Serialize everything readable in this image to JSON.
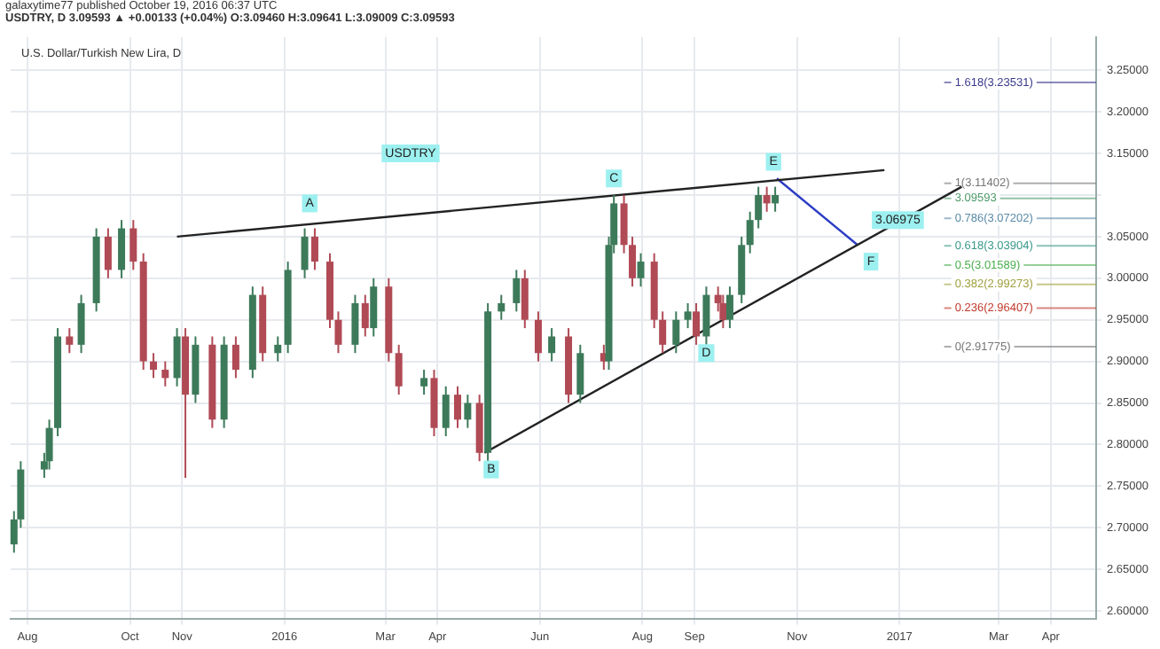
{
  "chart_data": {
    "type": "candlestick",
    "title": "U.S. Dollar/Turkish New Lira, D",
    "annotations": [
      "galaxytime77 published October 19, 2016 06:37 UTC",
      "USDTRY, D 3.09593 ▲ +0.00133 (+0.04%) O:3.09460 H:3.09641 L:3.09009 C:3.09593",
      {
        "text": "USDTRY",
        "x": "2016-03-16",
        "y": 3.15
      },
      {
        "text": "A",
        "x": "2016-01-16",
        "y": 3.09
      },
      {
        "text": "B",
        "x": "2016-05-03",
        "y": 2.77
      },
      {
        "text": "C",
        "x": "2016-07-15",
        "y": 3.12
      },
      {
        "text": "D",
        "x": "2016-09-08",
        "y": 2.91
      },
      {
        "text": "E",
        "x": "2016-10-18",
        "y": 3.14
      },
      {
        "text": "F",
        "x": "2016-12-15",
        "y": 3.02
      },
      {
        "text": "3.06975",
        "x": "2016-12-31",
        "y": 3.07
      }
    ],
    "x": [
      "2015-07-24",
      "2015-07-28",
      "2015-08-11",
      "2015-08-14",
      "2015-08-19",
      "2015-08-26",
      "2015-09-02",
      "2015-09-11",
      "2015-09-18",
      "2015-09-26",
      "2015-10-03",
      "2015-10-09",
      "2015-10-15",
      "2015-10-22",
      "2015-10-29",
      "2015-11-03",
      "2015-11-09",
      "2015-11-19",
      "2015-11-26",
      "2015-12-03",
      "2015-12-13",
      "2015-12-19",
      "2015-12-28",
      "2016-01-03",
      "2016-01-13",
      "2016-01-19",
      "2016-01-28",
      "2016-02-02",
      "2016-02-12",
      "2016-02-18",
      "2016-02-23",
      "2016-03-03",
      "2016-03-09",
      "2016-03-24",
      "2016-03-30",
      "2016-04-06",
      "2016-04-13",
      "2016-04-19",
      "2016-04-26",
      "2016-05-01",
      "2016-05-09",
      "2016-05-18",
      "2016-05-23",
      "2016-05-31",
      "2016-06-08",
      "2016-06-18",
      "2016-06-25",
      "2016-07-09",
      "2016-07-12",
      "2016-07-15",
      "2016-07-21",
      "2016-07-26",
      "2016-07-31",
      "2016-08-08",
      "2016-08-13",
      "2016-08-21",
      "2016-08-28",
      "2016-09-02",
      "2016-09-08",
      "2016-09-15",
      "2016-09-18",
      "2016-09-22",
      "2016-09-29",
      "2016-10-04",
      "2016-10-09",
      "2016-10-14",
      "2016-10-19"
    ],
    "ohlc": [
      [
        2.68,
        2.72,
        2.67,
        2.71
      ],
      [
        2.71,
        2.78,
        2.7,
        2.77
      ],
      [
        2.77,
        2.79,
        2.76,
        2.78
      ],
      [
        2.78,
        2.83,
        2.77,
        2.82
      ],
      [
        2.82,
        2.94,
        2.81,
        2.93
      ],
      [
        2.93,
        2.94,
        2.91,
        2.92
      ],
      [
        2.92,
        2.98,
        2.91,
        2.97
      ],
      [
        2.97,
        3.06,
        2.96,
        3.05
      ],
      [
        3.05,
        3.06,
        3.0,
        3.01
      ],
      [
        3.01,
        3.07,
        3.0,
        3.06
      ],
      [
        3.06,
        3.07,
        3.01,
        3.02
      ],
      [
        3.02,
        3.03,
        2.89,
        2.9
      ],
      [
        2.9,
        2.91,
        2.88,
        2.89
      ],
      [
        2.89,
        2.9,
        2.87,
        2.88
      ],
      [
        2.88,
        2.94,
        2.87,
        2.93
      ],
      [
        2.93,
        2.94,
        2.76,
        2.86
      ],
      [
        2.86,
        2.93,
        2.85,
        2.92
      ],
      [
        2.92,
        2.93,
        2.82,
        2.83
      ],
      [
        2.83,
        2.93,
        2.82,
        2.92
      ],
      [
        2.92,
        2.93,
        2.88,
        2.89
      ],
      [
        2.89,
        2.99,
        2.88,
        2.98
      ],
      [
        2.98,
        2.99,
        2.9,
        2.91
      ],
      [
        2.91,
        2.93,
        2.9,
        2.92
      ],
      [
        2.92,
        3.02,
        2.91,
        3.01
      ],
      [
        3.01,
        3.06,
        3.0,
        3.05
      ],
      [
        3.05,
        3.06,
        3.01,
        3.02
      ],
      [
        3.02,
        3.03,
        2.94,
        2.95
      ],
      [
        2.95,
        2.96,
        2.91,
        2.92
      ],
      [
        2.92,
        2.98,
        2.91,
        2.97
      ],
      [
        2.97,
        2.98,
        2.93,
        2.94
      ],
      [
        2.94,
        3.0,
        2.93,
        2.99
      ],
      [
        2.99,
        3.0,
        2.9,
        2.91
      ],
      [
        2.91,
        2.92,
        2.86,
        2.87
      ],
      [
        2.87,
        2.89,
        2.86,
        2.88
      ],
      [
        2.88,
        2.89,
        2.81,
        2.82
      ],
      [
        2.82,
        2.87,
        2.81,
        2.86
      ],
      [
        2.86,
        2.87,
        2.82,
        2.83
      ],
      [
        2.83,
        2.86,
        2.82,
        2.85
      ],
      [
        2.85,
        2.86,
        2.78,
        2.79
      ],
      [
        2.79,
        2.97,
        2.78,
        2.96
      ],
      [
        2.96,
        2.98,
        2.95,
        2.97
      ],
      [
        2.97,
        3.01,
        2.96,
        3.0
      ],
      [
        3.0,
        3.01,
        2.94,
        2.95
      ],
      [
        2.95,
        2.96,
        2.9,
        2.91
      ],
      [
        2.91,
        2.94,
        2.9,
        2.93
      ],
      [
        2.93,
        2.94,
        2.85,
        2.86
      ],
      [
        2.86,
        2.92,
        2.85,
        2.91
      ],
      [
        2.91,
        2.92,
        2.89,
        2.9
      ],
      [
        2.9,
        3.05,
        2.89,
        3.04
      ],
      [
        3.04,
        3.1,
        3.03,
        3.09
      ],
      [
        3.09,
        3.1,
        3.03,
        3.04
      ],
      [
        3.04,
        3.05,
        2.99,
        3.0
      ],
      [
        3.0,
        3.03,
        2.99,
        3.02
      ],
      [
        3.02,
        3.03,
        2.94,
        2.95
      ],
      [
        2.95,
        2.96,
        2.91,
        2.92
      ],
      [
        2.92,
        2.96,
        2.91,
        2.95
      ],
      [
        2.95,
        2.97,
        2.94,
        2.96
      ],
      [
        2.96,
        2.97,
        2.92,
        2.93
      ],
      [
        2.93,
        2.99,
        2.92,
        2.98
      ],
      [
        2.98,
        2.99,
        2.96,
        2.97
      ],
      [
        2.97,
        2.98,
        2.94,
        2.95
      ],
      [
        2.95,
        2.99,
        2.94,
        2.98
      ],
      [
        2.98,
        3.05,
        2.97,
        3.04
      ],
      [
        3.04,
        3.08,
        3.03,
        3.07
      ],
      [
        3.07,
        3.11,
        3.06,
        3.1
      ],
      [
        3.1,
        3.11,
        3.08,
        3.09
      ],
      [
        3.09,
        3.11,
        3.08,
        3.1
      ]
    ],
    "series": [
      {
        "type": "line",
        "color": "#222222",
        "x": [
          "2015-10-29",
          "2016-12-23"
        ],
        "values": [
          3.05,
          3.13
        ]
      },
      {
        "type": "line",
        "color": "#222222",
        "x": [
          "2016-04-29",
          "2017-02-07"
        ],
        "values": [
          2.79,
          3.11
        ]
      },
      {
        "type": "line",
        "color": "#2b3cc4",
        "x": [
          "2016-10-20",
          "2016-12-07"
        ],
        "values": [
          3.12,
          3.04
        ]
      }
    ],
    "ref_lines": [
      {
        "axis": "y",
        "value": 3.09593,
        "label": "3.09593",
        "color": "#4e9a6a"
      },
      {
        "axis": "y",
        "value": 3.23531,
        "label": "1.618(3.23531)",
        "color": "#3a3a8c"
      },
      {
        "axis": "y",
        "value": 3.11402,
        "label": "1(3.11402)",
        "color": "#777777"
      },
      {
        "axis": "y",
        "value": 3.07202,
        "label": "0.786(3.07202)",
        "color": "#5a8aa8"
      },
      {
        "axis": "y",
        "value": 3.03904,
        "label": "0.618(3.03904)",
        "color": "#3a9a8a"
      },
      {
        "axis": "y",
        "value": 3.01589,
        "label": "0.5(3.01589)",
        "color": "#4caf50"
      },
      {
        "axis": "y",
        "value": 2.99273,
        "label": "0.382(2.99273)",
        "color": "#a0a040"
      },
      {
        "axis": "y",
        "value": 2.96407,
        "label": "0.236(2.96407)",
        "color": "#c0392b"
      },
      {
        "axis": "y",
        "value": 2.91775,
        "label": "0(2.91775)",
        "color": "#777777"
      }
    ],
    "xlim": [
      "2015-07-22",
      "2017-04-28"
    ],
    "xticks": [
      {
        "value": "2015-08-01",
        "label": "Aug"
      },
      {
        "value": "2015-10-01",
        "label": "Oct"
      },
      {
        "value": "2015-11-01",
        "label": "Nov"
      },
      {
        "value": "2016-01-01",
        "label": "2016"
      },
      {
        "value": "2016-03-01",
        "label": "Mar"
      },
      {
        "value": "2016-04-01",
        "label": "Apr"
      },
      {
        "value": "2016-06-01",
        "label": "Jun"
      },
      {
        "value": "2016-08-01",
        "label": "Aug"
      },
      {
        "value": "2016-09-01",
        "label": "Sep"
      },
      {
        "value": "2016-11-01",
        "label": "Nov"
      },
      {
        "value": "2017-01-01",
        "label": "2017"
      },
      {
        "value": "2017-03-01",
        "label": "Mar"
      },
      {
        "value": "2017-04-01",
        "label": "Apr"
      }
    ],
    "ylim": [
      2.59,
      3.29
    ],
    "yticks": [
      {
        "value": 2.6,
        "label": "2.60000"
      },
      {
        "value": 2.65,
        "label": "2.65000"
      },
      {
        "value": 2.7,
        "label": "2.70000"
      },
      {
        "value": 2.75,
        "label": "2.75000"
      },
      {
        "value": 2.8,
        "label": "2.80000"
      },
      {
        "value": 2.85,
        "label": "2.85000"
      },
      {
        "value": 2.9,
        "label": "2.90000"
      },
      {
        "value": 2.95,
        "label": "2.95000"
      },
      {
        "value": 3.0,
        "label": "3.00000"
      },
      {
        "value": 3.05,
        "label": "3.05000"
      },
      {
        "value": 3.1,
        "label": null
      },
      {
        "value": 3.15,
        "label": "3.15000"
      },
      {
        "value": 3.2,
        "label": "3.20000"
      },
      {
        "value": 3.25,
        "label": "3.25000"
      }
    ],
    "grid": true,
    "legend": false
  }
}
